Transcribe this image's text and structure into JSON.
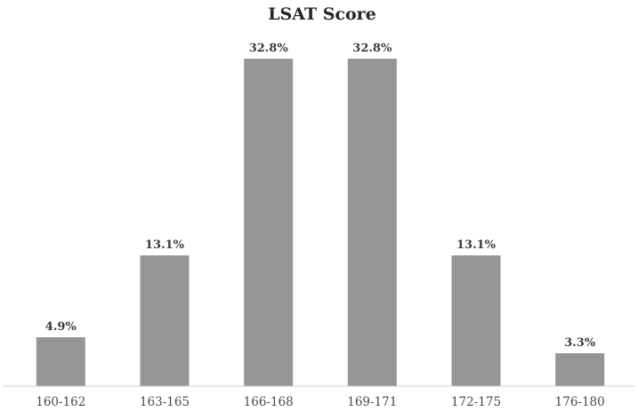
{
  "chart_data": {
    "type": "bar",
    "title": "LSAT Score",
    "categories": [
      "160-162",
      "163-165",
      "166-168",
      "169-171",
      "172-175",
      "176-180"
    ],
    "values": [
      4.9,
      13.1,
      32.8,
      32.8,
      13.1,
      3.3
    ],
    "data_labels": [
      "4.9%",
      "13.1%",
      "32.8%",
      "32.8%",
      "13.1%",
      "3.3%"
    ],
    "xlabel": "",
    "ylabel": "",
    "ylim": [
      0,
      35
    ],
    "grid": false,
    "legend": "none",
    "colors": {
      "bar": "#969696",
      "axis": "#d0d0d0"
    }
  }
}
